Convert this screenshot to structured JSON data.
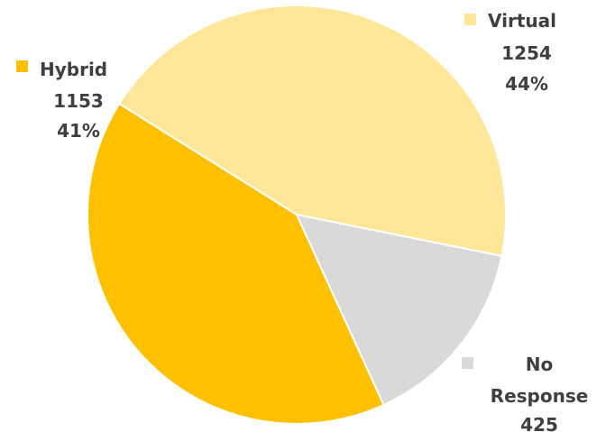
{
  "chart_data": {
    "type": "pie",
    "title": "",
    "slices": [
      {
        "label": "Virtual",
        "value": 1254,
        "percent": "44%",
        "color": "#FFE699"
      },
      {
        "label": "No Response",
        "value": 425,
        "percent": "",
        "color": "#D9D9D9"
      },
      {
        "label": "Hybrid",
        "value": 1153,
        "percent": "41%",
        "color": "#FFC000"
      }
    ],
    "label_text_color": "#3F3F3F",
    "legend_keys": "inline-with-labels"
  }
}
